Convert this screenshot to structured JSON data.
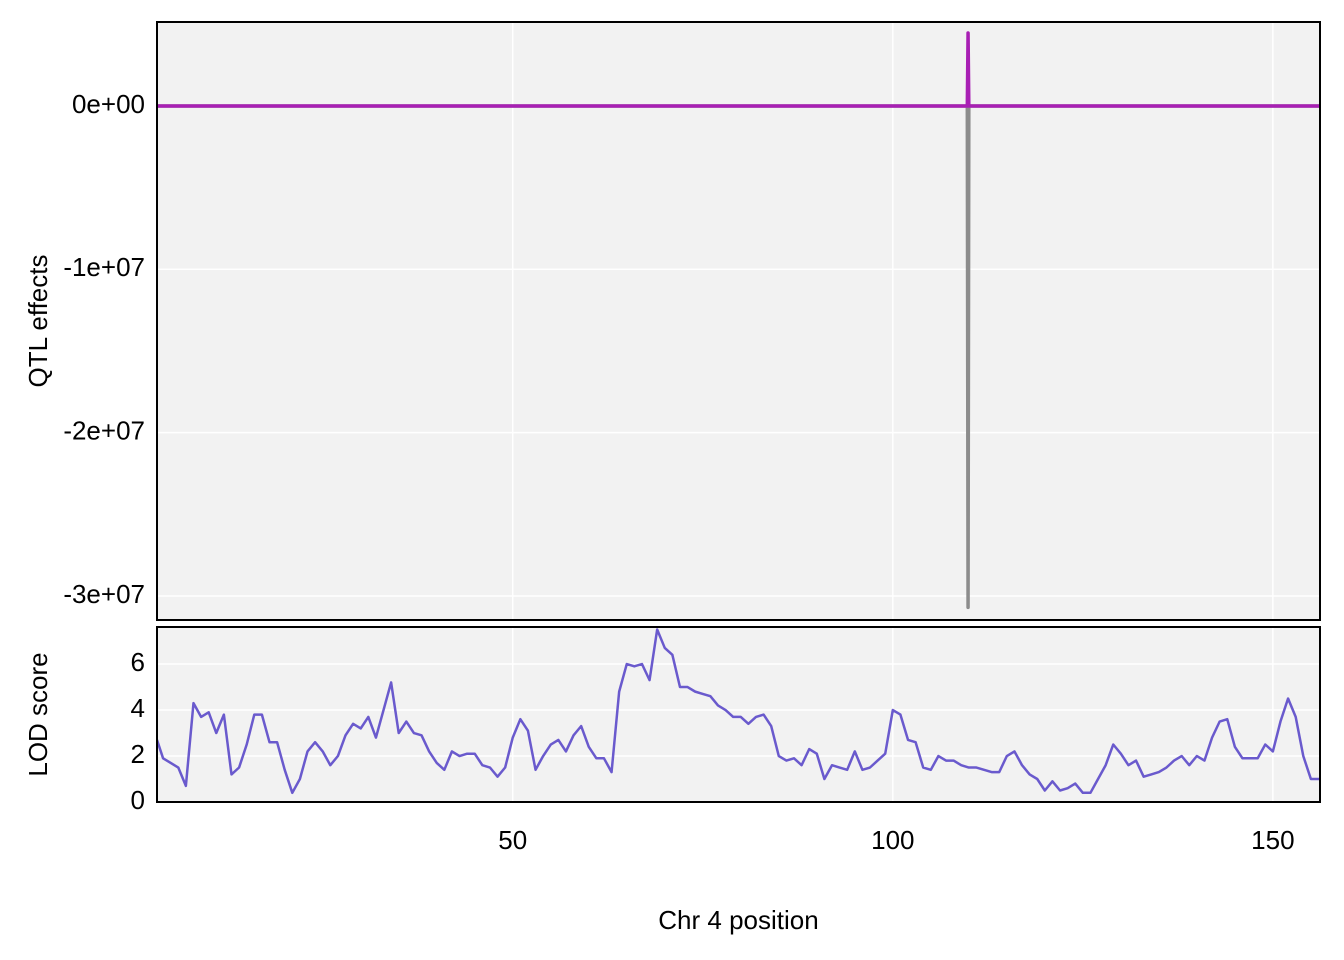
{
  "chart_data": [
    {
      "type": "line",
      "ylabel": "QTL effects",
      "x": [
        3.2,
        109.8,
        109.9,
        110.0,
        156.2
      ],
      "series": [
        {
          "color": "#8c8c8c",
          "values": [
            0,
            0,
            -30700000,
            0,
            0
          ]
        },
        {
          "color": "#a81fb4",
          "values": [
            0,
            0,
            4470000,
            0,
            0
          ]
        }
      ],
      "xlim": [
        3.2,
        156.2
      ],
      "xticks": [
        50,
        100,
        150
      ],
      "ylim": [
        -31470000,
        5140000
      ],
      "yticks": [
        {
          "value": -30000000,
          "label": "-3e+07"
        },
        {
          "value": -20000000,
          "label": "-2e+07"
        },
        {
          "value": -10000000,
          "label": "-1e+07"
        },
        {
          "value": 0,
          "label": "0e+00"
        }
      ],
      "grid": true
    },
    {
      "type": "line",
      "ylabel": "LOD score",
      "xlabel": "Chr 4 position",
      "x": [
        3.2,
        4,
        6,
        7,
        8,
        9,
        10,
        11,
        12,
        13,
        14,
        15,
        16,
        17,
        18,
        19,
        20,
        21,
        22,
        23,
        24,
        25,
        26,
        27,
        28,
        29,
        30,
        31,
        32,
        33,
        34,
        35,
        36,
        37,
        38,
        39,
        40,
        41,
        42,
        43,
        44,
        45,
        46,
        47,
        48,
        49,
        50,
        51,
        52,
        53,
        54,
        55,
        56,
        57,
        58,
        59,
        60,
        61,
        62,
        63,
        64,
        65,
        66,
        67,
        68,
        69,
        70,
        71,
        72,
        73,
        74,
        75,
        76,
        77,
        78,
        79,
        80,
        81,
        82,
        83,
        84,
        85,
        86,
        87,
        88,
        89,
        90,
        91,
        92,
        93,
        94,
        95,
        96,
        97,
        98,
        99,
        100,
        101,
        102,
        103,
        104,
        105,
        106,
        107,
        108,
        109,
        110,
        111,
        112,
        113,
        114,
        115,
        116,
        117,
        118,
        119,
        120,
        121,
        122,
        123,
        124,
        125,
        126,
        127,
        128,
        129,
        130,
        131,
        132,
        133,
        134,
        135,
        136,
        137,
        138,
        139,
        140,
        141,
        142,
        143,
        144,
        145,
        146,
        147,
        148,
        149,
        150,
        151,
        152,
        153,
        154,
        155,
        156.2
      ],
      "series": [
        {
          "color": "#6a5acd",
          "values": [
            2.7,
            1.9,
            1.5,
            0.7,
            4.3,
            3.7,
            3.9,
            3.0,
            3.8,
            1.2,
            1.5,
            2.5,
            3.8,
            3.8,
            2.6,
            2.6,
            1.4,
            0.4,
            1.0,
            2.2,
            2.6,
            2.2,
            1.6,
            2.0,
            2.9,
            3.4,
            3.2,
            3.7,
            2.8,
            4.0,
            5.2,
            3.0,
            3.5,
            3.0,
            2.9,
            2.2,
            1.7,
            1.4,
            2.2,
            2.0,
            2.1,
            2.1,
            1.6,
            1.5,
            1.1,
            1.5,
            2.8,
            3.6,
            3.1,
            1.4,
            2.0,
            2.5,
            2.7,
            2.2,
            2.9,
            3.3,
            2.4,
            1.9,
            1.9,
            1.3,
            4.8,
            6.0,
            5.9,
            6.0,
            5.3,
            7.5,
            6.7,
            6.4,
            5.0,
            5.0,
            4.8,
            4.7,
            4.6,
            4.2,
            4.0,
            3.7,
            3.7,
            3.4,
            3.7,
            3.8,
            3.3,
            2.0,
            1.8,
            1.9,
            1.6,
            2.3,
            2.1,
            1.0,
            1.6,
            1.5,
            1.4,
            2.2,
            1.4,
            1.5,
            1.8,
            2.1,
            4.0,
            3.8,
            2.7,
            2.6,
            1.5,
            1.4,
            2.0,
            1.8,
            1.8,
            1.6,
            1.5,
            1.5,
            1.4,
            1.3,
            1.3,
            2.0,
            2.2,
            1.6,
            1.2,
            1.0,
            0.5,
            0.9,
            0.5,
            0.6,
            0.8,
            0.4,
            0.4,
            1.0,
            1.6,
            2.5,
            2.1,
            1.6,
            1.8,
            1.1,
            1.2,
            1.3,
            1.5,
            1.8,
            2.0,
            1.6,
            2.0,
            1.8,
            2.8,
            3.5,
            3.6,
            2.4,
            1.9,
            1.9,
            1.9,
            2.5,
            2.2,
            3.5,
            4.5,
            3.7,
            2.0,
            1.0,
            1.0
          ]
        }
      ],
      "xlim": [
        3.2,
        156.2
      ],
      "xticks": [
        50,
        100,
        150
      ],
      "ylim": [
        0,
        7.61
      ],
      "yticks": [
        0,
        2,
        4,
        6
      ],
      "grid": true
    }
  ]
}
